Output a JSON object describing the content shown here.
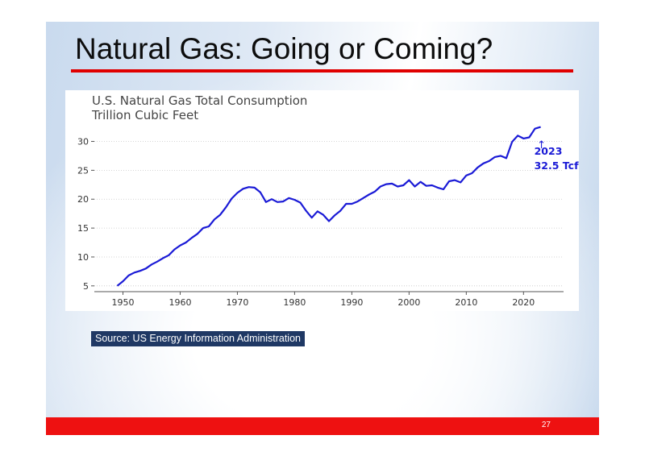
{
  "slide": {
    "title": "Natural Gas: Going or Coming?",
    "source": "Source: US Energy Information Administration",
    "page_number": "27",
    "colors": {
      "accent": "#e00000",
      "series": "#1a1ad6",
      "source_bg": "#1f3864",
      "footer": "#ee1111"
    }
  },
  "chart_data": {
    "type": "line",
    "title": "U.S. Natural Gas Total Consumption",
    "subtitle": "Trillion Cubic Feet",
    "xlim": [
      1945,
      2027
    ],
    "ylim": [
      4,
      33
    ],
    "x_ticks": [
      1950,
      1960,
      1970,
      1980,
      1990,
      2000,
      2010,
      2020
    ],
    "y_ticks": [
      5,
      10,
      15,
      20,
      25,
      30
    ],
    "grid": "horizontal",
    "annotation": {
      "line1": "2023",
      "line2": "32.5 Tcf",
      "arrow": "↑"
    },
    "series": [
      {
        "x": [
          1949,
          1950,
          1951,
          1952,
          1953,
          1954,
          1955,
          1956,
          1957,
          1958,
          1959,
          1960,
          1961,
          1962,
          1963,
          1964,
          1965,
          1966,
          1967,
          1968,
          1969,
          1970,
          1971,
          1972,
          1973,
          1974,
          1975,
          1976,
          1977,
          1978,
          1979,
          1980,
          1981,
          1982,
          1983,
          1984,
          1985,
          1986,
          1987,
          1988,
          1989,
          1990,
          1991,
          1992,
          1993,
          1994,
          1995,
          1996,
          1997,
          1998,
          1999,
          2000,
          2001,
          2002,
          2003,
          2004,
          2005,
          2006,
          2007,
          2008,
          2009,
          2010,
          2011,
          2012,
          2013,
          2014,
          2015,
          2016,
          2017,
          2018,
          2019,
          2020,
          2021,
          2022,
          2023
        ],
        "values": [
          5.0,
          5.8,
          6.8,
          7.3,
          7.6,
          8.0,
          8.7,
          9.2,
          9.8,
          10.3,
          11.3,
          12.0,
          12.5,
          13.3,
          14.0,
          15.0,
          15.3,
          16.5,
          17.3,
          18.6,
          20.1,
          21.1,
          21.8,
          22.1,
          22.0,
          21.2,
          19.5,
          20.0,
          19.5,
          19.6,
          20.2,
          19.9,
          19.4,
          18.0,
          16.8,
          17.9,
          17.3,
          16.2,
          17.2,
          18.0,
          19.2,
          19.2,
          19.6,
          20.2,
          20.8,
          21.3,
          22.2,
          22.6,
          22.7,
          22.2,
          22.4,
          23.3,
          22.2,
          23.0,
          22.3,
          22.4,
          22.0,
          21.7,
          23.1,
          23.3,
          22.9,
          24.1,
          24.5,
          25.5,
          26.2,
          26.6,
          27.3,
          27.5,
          27.1,
          29.9,
          31.0,
          30.5,
          30.7,
          32.2,
          32.5
        ]
      }
    ]
  }
}
